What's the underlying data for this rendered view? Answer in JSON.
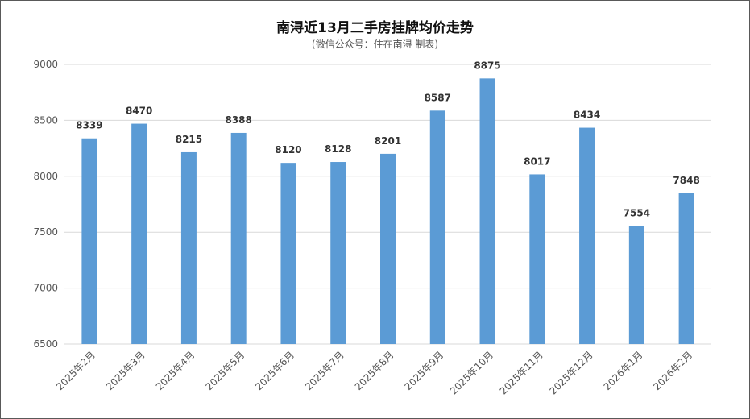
{
  "chart_data": {
    "type": "bar",
    "title": "南浔近13月二手房挂牌均价走势",
    "subtitle": "(微信公众号：住在南浔 制表)",
    "categories": [
      "2025年2月",
      "2025年3月",
      "2025年4月",
      "2025年5月",
      "2025年6月",
      "2025年7月",
      "2025年8月",
      "2025年9月",
      "2025年10月",
      "2025年11月",
      "2025年12月",
      "2026年1月",
      "2026年2月"
    ],
    "values": [
      8339,
      8470,
      8215,
      8388,
      8120,
      8128,
      8201,
      8587,
      8875,
      8017,
      8434,
      7554,
      7848
    ],
    "ylim": [
      6500,
      9000
    ],
    "yticks": [
      6500,
      7000,
      7500,
      8000,
      8500,
      9000
    ],
    "xlabel": "",
    "ylabel": "",
    "grid": true,
    "legend": "none",
    "bar_color": "#5B9BD5",
    "grid_color": "#d9d9d9"
  }
}
